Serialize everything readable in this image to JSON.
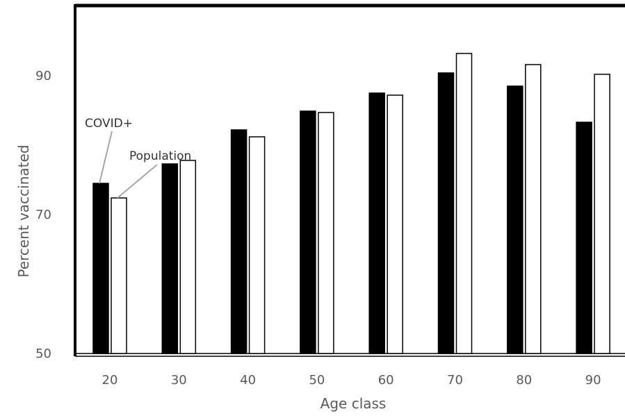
{
  "chart_data": {
    "type": "bar",
    "categories": [
      "20",
      "30",
      "40",
      "50",
      "60",
      "70",
      "80",
      "90"
    ],
    "series": [
      {
        "name": "COVID+",
        "values": [
          74.5,
          77.3,
          82.2,
          84.9,
          87.5,
          90.4,
          88.5,
          83.3
        ],
        "color": "#000000"
      },
      {
        "name": "Population",
        "values": [
          72.4,
          77.8,
          81.2,
          84.7,
          87.2,
          93.2,
          91.6,
          90.2
        ],
        "color": "#ffffff"
      }
    ],
    "xlabel": "Age class",
    "ylabel": "Percent vaccinated",
    "ylim": [
      50,
      90
    ],
    "yticks": [
      "50",
      "70",
      "90"
    ],
    "grid": false,
    "annotations": [
      {
        "text": "COVID+",
        "series": 0,
        "category": "20"
      },
      {
        "text": "Population",
        "series": 1,
        "category": "20"
      }
    ]
  }
}
